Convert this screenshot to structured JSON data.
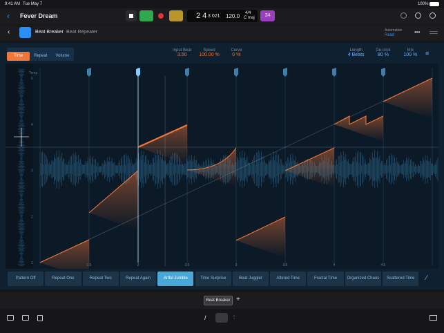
{
  "status_bar": {
    "time": "9:41 AM",
    "date": "Tue May 7",
    "battery": "100%"
  },
  "toolbar": {
    "project": "Fever Dream",
    "position_major": "2 4",
    "position_minor": "3 021",
    "tempo": "120.0",
    "signature": "4/4",
    "key": "C maj",
    "count_in": "34"
  },
  "plugin_header": {
    "name": "Beat Breaker",
    "preset": "Beat Repeater",
    "automation_label": "Automation",
    "automation_mode": "Read"
  },
  "tabs": [
    "Time",
    "Repeat",
    "Volume"
  ],
  "active_tab_index": 0,
  "parameters_left": [
    {
      "label": "Input Beat",
      "value": "3.50"
    },
    {
      "label": "Speed",
      "value": "100.00 %"
    },
    {
      "label": "Curve",
      "value": "0 %"
    }
  ],
  "parameters_right": [
    {
      "label": "Length",
      "value": "4 Beats"
    },
    {
      "label": "De-click",
      "value": "80 %"
    },
    {
      "label": "Mix",
      "value": "100 %"
    }
  ],
  "graph": {
    "y_title": "Temp",
    "y_labels": [
      "5",
      "4",
      "3",
      "2",
      "1"
    ],
    "x_labels": [
      "1.5",
      "2",
      "2.5",
      "3",
      "3.5",
      "4",
      "4.5"
    ]
  },
  "presets": [
    "Pattern Off",
    "Repeat One",
    "Repeat Two",
    "Repeat Again",
    "Artful Jumble",
    "Time Surprise",
    "Beat Juggler",
    "Altered Time",
    "Fractal Time",
    "Organized Chaos",
    "Scattered Time"
  ],
  "selected_preset_index": 4,
  "bottom_tabs": [
    "Beat Breaker"
  ],
  "add_tab": "+"
}
